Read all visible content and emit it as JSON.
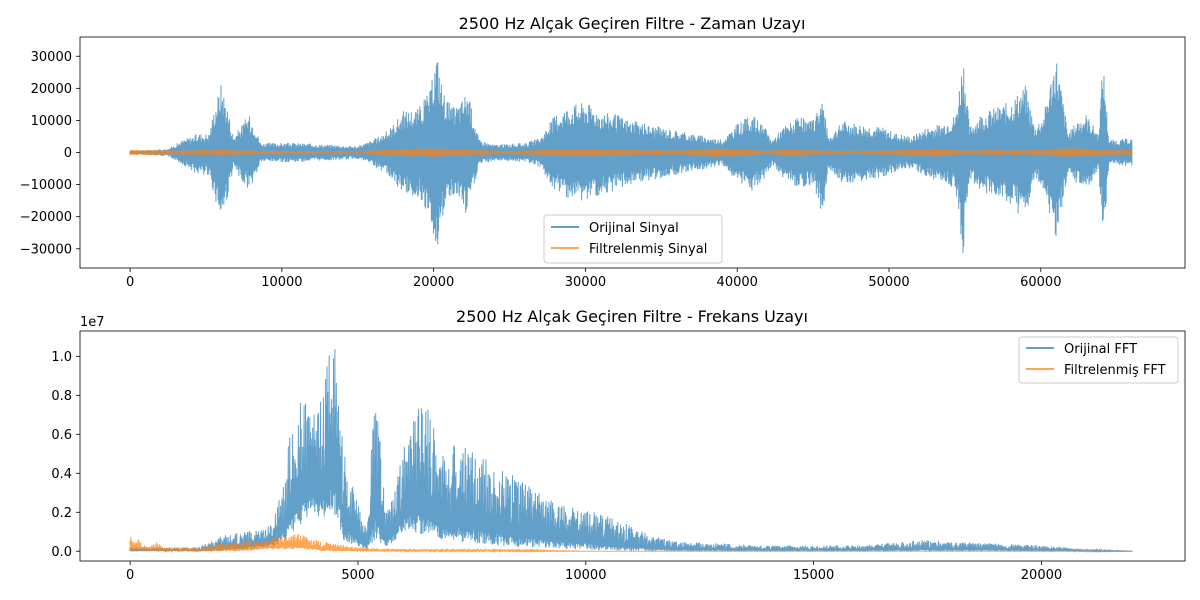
{
  "colors": {
    "original": "#1f77b4",
    "filtered": "#ff7f0e"
  },
  "chart_data": [
    {
      "type": "line",
      "title": "2500 Hz Alçak Geçiren Filtre - Zaman Uzayı",
      "xlabel": "",
      "ylabel": "",
      "xlim": [
        -3300,
        69500
      ],
      "ylim": [
        -36000,
        36000
      ],
      "xticks": [
        0,
        10000,
        20000,
        30000,
        40000,
        50000,
        60000
      ],
      "xtick_labels": [
        "0",
        "10000",
        "20000",
        "30000",
        "40000",
        "50000",
        "60000"
      ],
      "yticks": [
        -30000,
        -20000,
        -10000,
        0,
        10000,
        20000,
        30000
      ],
      "ytick_labels": [
        "−30000",
        "−20000",
        "−10000",
        "0",
        "10000",
        "20000",
        "30000"
      ],
      "legend_position": "lower-center",
      "series": [
        {
          "name": "Orijinal Sinyal",
          "style": "mirrored-envelope",
          "x": [
            0,
            1500,
            2500,
            3500,
            4500,
            5200,
            5600,
            6000,
            6400,
            6800,
            7400,
            7800,
            8200,
            8600,
            9000,
            11000,
            13000,
            15000,
            16000,
            17000,
            18000,
            19000,
            19800,
            20200,
            20600,
            21200,
            21800,
            22200,
            22600,
            23000,
            24000,
            26000,
            27000,
            28000,
            29000,
            30000,
            31000,
            32000,
            33000,
            34000,
            35000,
            36000,
            37000,
            38000,
            39000,
            40000,
            41000,
            41800,
            42300,
            43000,
            44000,
            45000,
            45600,
            46000,
            47000,
            48000,
            49500,
            50500,
            51500,
            52500,
            53500,
            54400,
            54900,
            55300,
            56000,
            57000,
            58000,
            59000,
            59600,
            60200,
            61000,
            61800,
            62400,
            63000,
            63800,
            64100,
            64500,
            65000,
            66000
          ],
          "upper": [
            600,
            800,
            1200,
            4000,
            6000,
            6000,
            15000,
            22000,
            15000,
            5000,
            9000,
            12000,
            9000,
            3000,
            3000,
            3000,
            2500,
            2000,
            4000,
            7000,
            13000,
            14000,
            20000,
            32000,
            20000,
            14000,
            16000,
            20000,
            12000,
            4000,
            2500,
            3000,
            4500,
            12000,
            15000,
            16000,
            13000,
            12000,
            10000,
            9000,
            8000,
            7000,
            6000,
            5000,
            4000,
            9000,
            12000,
            8000,
            4000,
            8000,
            11000,
            10000,
            18000,
            5000,
            10000,
            9000,
            8000,
            6000,
            5000,
            8000,
            9000,
            12000,
            31000,
            8000,
            12000,
            14000,
            16000,
            21000,
            8000,
            12000,
            31000,
            6000,
            10000,
            12000,
            6000,
            29000,
            4000,
            4000,
            4500
          ],
          "lower": [
            -600,
            -800,
            -1200,
            -4000,
            -7000,
            -7000,
            -15000,
            -22000,
            -15000,
            -5000,
            -9000,
            -12000,
            -9000,
            -3000,
            -3000,
            -3000,
            -2500,
            -2000,
            -4000,
            -7000,
            -13000,
            -14000,
            -20000,
            -32000,
            -20000,
            -14000,
            -16000,
            -20000,
            -12000,
            -4000,
            -2500,
            -3000,
            -4500,
            -12000,
            -15000,
            -16000,
            -13000,
            -12000,
            -10000,
            -9000,
            -8000,
            -7000,
            -6000,
            -5000,
            -4000,
            -9000,
            -12000,
            -8000,
            -4000,
            -8000,
            -11000,
            -10000,
            -20000,
            -5000,
            -10000,
            -9000,
            -8000,
            -6000,
            -5000,
            -8000,
            -9000,
            -12000,
            -33000,
            -8000,
            -12000,
            -14000,
            -16000,
            -22000,
            -8000,
            -12000,
            -28000,
            -6000,
            -10000,
            -12000,
            -6000,
            -29000,
            -4000,
            -4000,
            -4500
          ]
        },
        {
          "name": "Filtrelenmiş Sinyal",
          "style": "mirrored-envelope",
          "x": [
            0,
            3000,
            6000,
            9000,
            12000,
            15000,
            18000,
            20000,
            22000,
            25000,
            28000,
            30000,
            33000,
            36000,
            39000,
            42000,
            43500,
            45000,
            48000,
            50000,
            53000,
            55000,
            58000,
            60000,
            62000,
            64000,
            66000
          ],
          "upper": [
            900,
            700,
            900,
            600,
            500,
            500,
            1200,
            1400,
            1000,
            500,
            1100,
            1300,
            900,
            700,
            1500,
            600,
            1200,
            700,
            600,
            700,
            1300,
            700,
            800,
            900,
            1500,
            900,
            800
          ],
          "lower": [
            -900,
            -700,
            -900,
            -600,
            -500,
            -500,
            -1200,
            -1400,
            -1000,
            -500,
            -1100,
            -1300,
            -900,
            -700,
            -1500,
            -600,
            -1200,
            -700,
            -600,
            -700,
            -1300,
            -700,
            -800,
            -900,
            -1500,
            -900,
            -800
          ]
        }
      ]
    },
    {
      "type": "line",
      "title": "2500 Hz Alçak Geçiren Filtre - Frekans Uzayı",
      "xlabel": "",
      "ylabel": "",
      "offset_text": "1e7",
      "xlim": [
        -1100,
        23150
      ],
      "ylim": [
        -0.05,
        1.13
      ],
      "y_scale_factor": 10000000,
      "xticks": [
        0,
        5000,
        10000,
        15000,
        20000
      ],
      "xtick_labels": [
        "0",
        "5000",
        "10000",
        "15000",
        "20000"
      ],
      "yticks": [
        0.0,
        0.2,
        0.4,
        0.6,
        0.8,
        1.0
      ],
      "ytick_labels": [
        "0.0",
        "0.2",
        "0.4",
        "0.6",
        "0.8",
        "1.0"
      ],
      "legend_position": "upper-right",
      "series": [
        {
          "name": "Orijinal FFT",
          "style": "spiky-envelope",
          "x": [
            0,
            500,
            1000,
            1500,
            2000,
            2500,
            3000,
            3200,
            3400,
            3600,
            3800,
            4000,
            4200,
            4400,
            4500,
            4700,
            5000,
            5200,
            5350,
            5450,
            5600,
            5800,
            6000,
            6200,
            6500,
            6800,
            7200,
            7600,
            8000,
            8500,
            9000,
            9500,
            10000,
            10500,
            11000,
            11500,
            12000,
            13000,
            14000,
            15000,
            16000,
            17000,
            17500,
            18000,
            19000,
            20000,
            21000,
            22000
          ],
          "upper": [
            0.02,
            0.02,
            0.02,
            0.02,
            0.08,
            0.1,
            0.12,
            0.2,
            0.45,
            0.72,
            0.78,
            0.7,
            0.78,
            1.1,
            1.08,
            0.5,
            0.25,
            0.1,
            0.82,
            0.78,
            0.2,
            0.3,
            0.55,
            0.7,
            0.8,
            0.52,
            0.55,
            0.5,
            0.45,
            0.38,
            0.3,
            0.25,
            0.22,
            0.18,
            0.13,
            0.08,
            0.05,
            0.04,
            0.03,
            0.03,
            0.03,
            0.05,
            0.06,
            0.05,
            0.04,
            0.03,
            0.01,
            0.0
          ],
          "lower": [
            0.0,
            0.0,
            0.0,
            0.0,
            0.0,
            0.01,
            0.02,
            0.03,
            0.05,
            0.1,
            0.15,
            0.2,
            0.15,
            0.2,
            0.18,
            0.05,
            0.02,
            0.01,
            0.05,
            0.04,
            0.02,
            0.05,
            0.1,
            0.1,
            0.08,
            0.06,
            0.05,
            0.04,
            0.03,
            0.02,
            0.02,
            0.01,
            0.01,
            0.0,
            0.0,
            0.0,
            0.0,
            0.0,
            0.0,
            0.0,
            0.0,
            0.0,
            0.0,
            0.0,
            0.0,
            0.0,
            0.0,
            0.0
          ]
        },
        {
          "name": "Filtrelenmiş FFT",
          "style": "spiky-envelope",
          "x": [
            0,
            50,
            80,
            120,
            200,
            400,
            600,
            700,
            900,
            1500,
            2000,
            2500,
            3000,
            3500,
            3700,
            3900,
            4200,
            4500,
            5000,
            6000,
            8000,
            10000,
            15000,
            20000,
            22000
          ],
          "upper": [
            0.08,
            0.08,
            0.05,
            0.08,
            0.06,
            0.02,
            0.05,
            0.02,
            0.02,
            0.02,
            0.04,
            0.05,
            0.06,
            0.08,
            0.1,
            0.08,
            0.05,
            0.04,
            0.02,
            0.01,
            0.01,
            0.0,
            0.0,
            0.0,
            0.0
          ],
          "lower": [
            0.0,
            0.0,
            0.0,
            0.0,
            0.0,
            0.0,
            0.0,
            0.0,
            0.0,
            0.0,
            0.0,
            0.0,
            0.01,
            0.01,
            0.01,
            0.01,
            0.0,
            0.0,
            0.0,
            0.0,
            0.0,
            0.0,
            0.0,
            0.0,
            0.0
          ]
        }
      ]
    }
  ]
}
